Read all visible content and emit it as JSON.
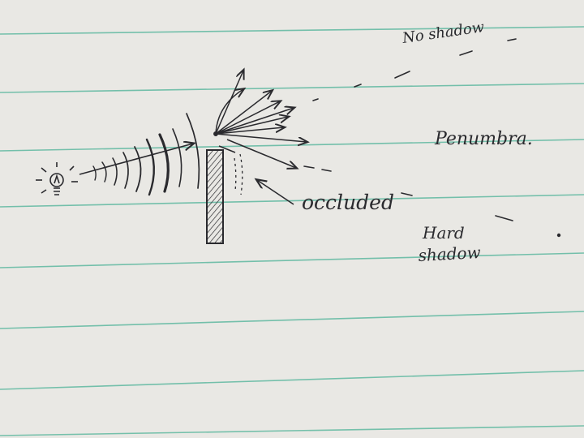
{
  "labels": {
    "no_shadow": "No shadow",
    "penumbra": "Penumbra.",
    "occluded": "occluded",
    "hard_shadow_line1": "Hard",
    "hard_shadow_line2": "shadow"
  },
  "icons": {
    "light_source": "lightbulb-icon",
    "occluder": "hatched-wall"
  },
  "colors": {
    "paper": "#e9e8e4",
    "ruled_line": "#5fb9a0",
    "ink": "#2a2a2e"
  }
}
